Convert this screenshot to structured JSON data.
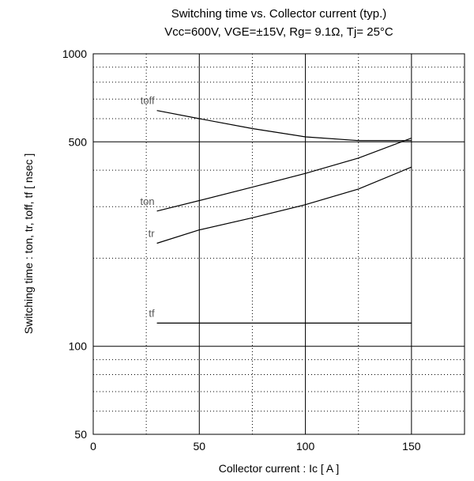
{
  "chart_data": {
    "type": "line",
    "title": "Switching time  vs.  Collector current  (typ.)",
    "subtitle": "Vcc=600V, VGE=±15V, Rg= 9.1Ω, Tj= 25°C",
    "xlabel": "Collector current  :  Ic  [ A ]",
    "ylabel": "Switching time  :  ton, tr, toff, tf  [ nsec ]",
    "xlim": [
      0,
      175
    ],
    "ylim": [
      50,
      1000
    ],
    "yscale": "log",
    "x_ticks": [
      0,
      50,
      100,
      150
    ],
    "y_ticks": [
      50,
      100,
      500,
      1000
    ],
    "grid": true,
    "series": [
      {
        "name": "toff",
        "x": [
          30,
          50,
          75,
          100,
          125,
          150
        ],
        "values": [
          640,
          600,
          555,
          520,
          505,
          505
        ]
      },
      {
        "name": "ton",
        "x": [
          30,
          50,
          75,
          100,
          125,
          150
        ],
        "values": [
          290,
          315,
          350,
          390,
          440,
          515
        ]
      },
      {
        "name": "tr",
        "x": [
          30,
          50,
          75,
          100,
          125,
          150
        ],
        "values": [
          225,
          250,
          275,
          305,
          345,
          410
        ]
      },
      {
        "name": "tf",
        "x": [
          30,
          50,
          75,
          100,
          125,
          150
        ],
        "values": [
          120,
          120,
          120,
          120,
          120,
          120
        ]
      }
    ]
  }
}
